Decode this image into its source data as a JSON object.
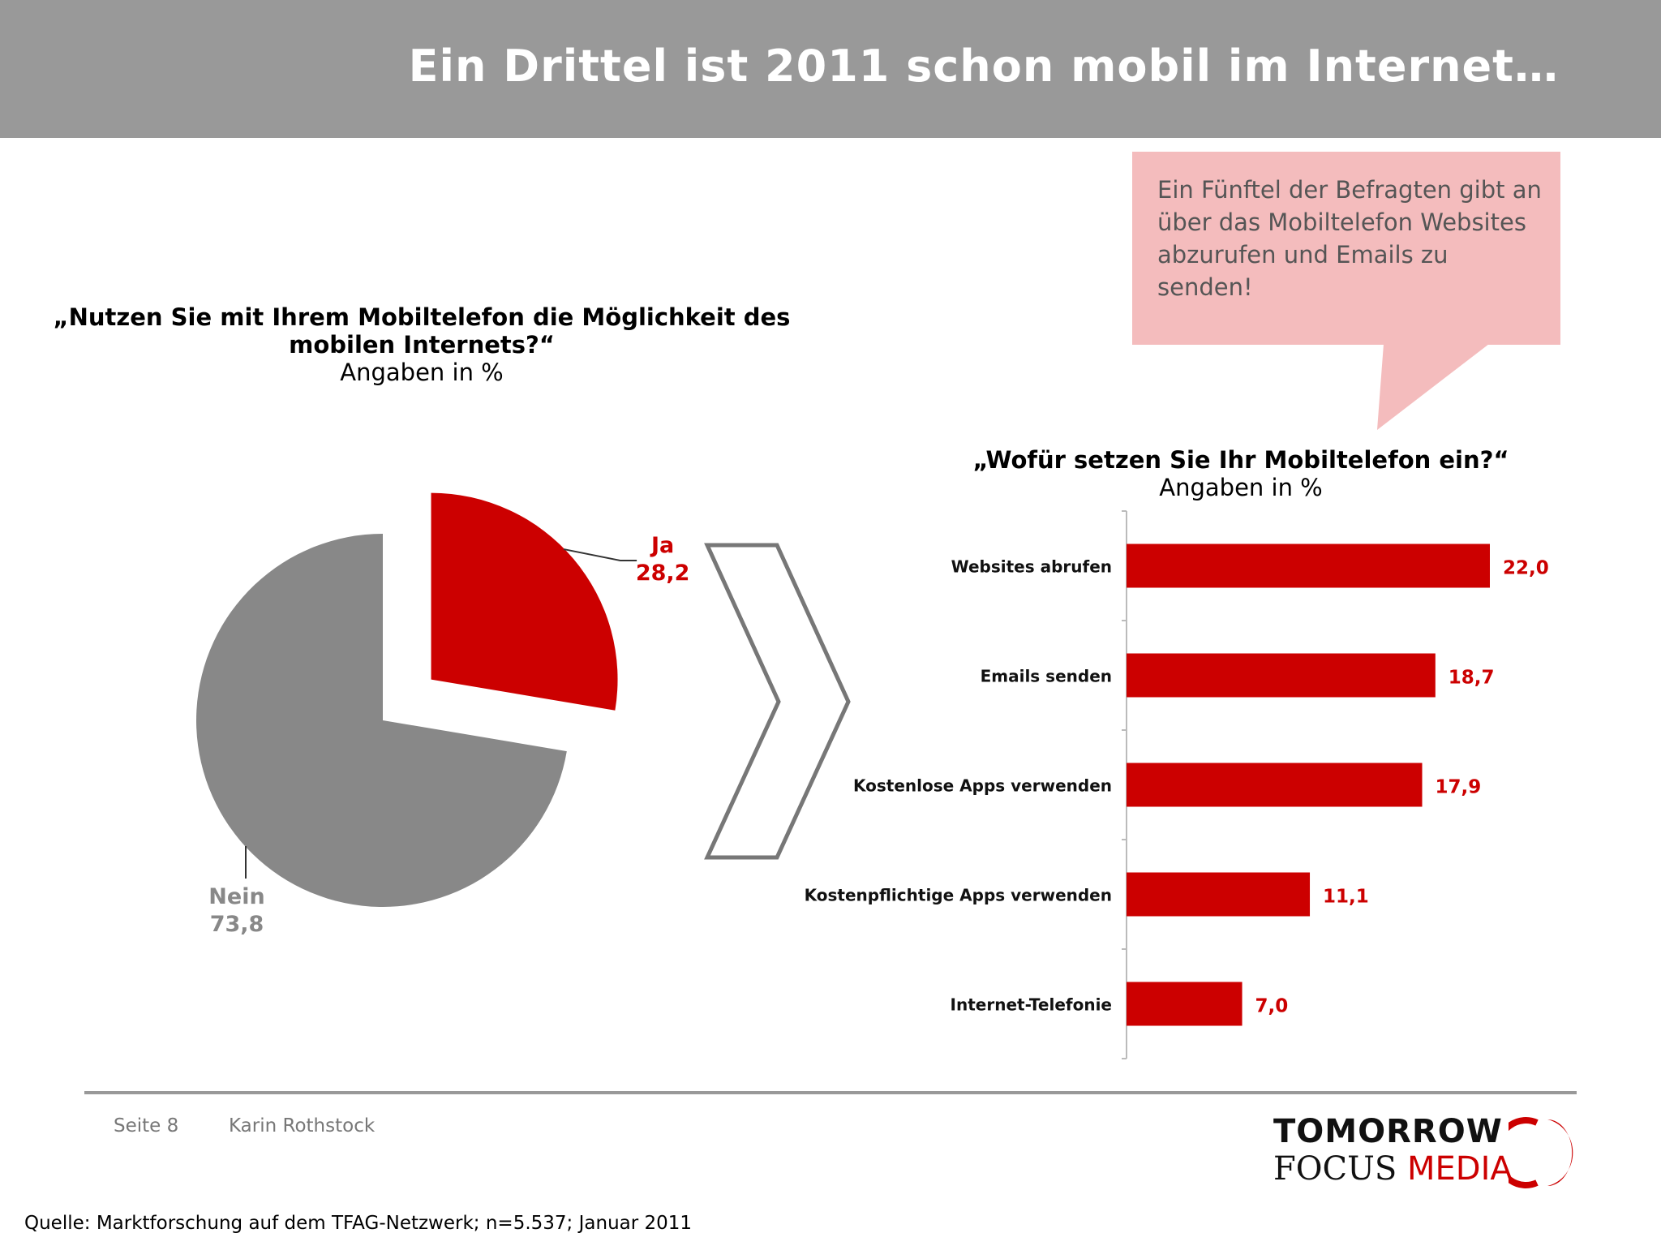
{
  "slide": {
    "title": "Ein Drittel ist 2011 schon mobil im Internet…",
    "callout": "Ein Fünftel der Befragten gibt an über das Mobiltelefon Websites abzurufen und Emails zu senden!"
  },
  "question1": {
    "title": "„Nutzen Sie mit Ihrem Mobiltelefon die Möglichkeit des mobilen Internets?“",
    "subtitle": "Angaben in %"
  },
  "question2": {
    "title": "„Wofür setzen Sie Ihr Mobiltelefon ein?“",
    "subtitle": "Angaben in %"
  },
  "chart_data": [
    {
      "type": "pie",
      "title": "„Nutzen Sie mit Ihrem Mobiltelefon die Möglichkeit des mobilen Internets?“",
      "subtitle": "Angaben in %",
      "slices": [
        {
          "label": "Ja",
          "value": 28.2,
          "value_label": "28,2",
          "color": "#cc0000",
          "exploded": true
        },
        {
          "label": "Nein",
          "value": 73.8,
          "value_label": "73,8",
          "color": "#888888"
        }
      ]
    },
    {
      "type": "bar",
      "orientation": "horizontal",
      "title": "„Wofür setzen Sie Ihr Mobiltelefon ein?“",
      "subtitle": "Angaben in %",
      "categories": [
        "Websites abrufen",
        "Emails senden",
        "Kostenlose Apps verwenden",
        "Kostenpflichtige Apps verwenden",
        "Internet-Telefonie"
      ],
      "values": [
        22.0,
        18.7,
        17.9,
        11.1,
        7.0
      ],
      "value_labels": [
        "22,0",
        "18,7",
        "17,9",
        "11,1",
        "7,0"
      ],
      "xlim": [
        0,
        25
      ],
      "color": "#cc0000",
      "grid": false
    }
  ],
  "footer": {
    "page": "Seite 8",
    "author": "Karin Rothstock",
    "source": "Quelle: Marktforschung auf dem TFAG-Netzwerk; n=5.537; Januar 2011"
  },
  "logo": {
    "line1": "TOMORROW",
    "line2_a": "FOCUS",
    "line2_b": "MEDIA"
  },
  "colors": {
    "header": "#999999",
    "accent": "#cc0000",
    "callout": "#f4bcbd",
    "pie_gray": "#888888"
  }
}
